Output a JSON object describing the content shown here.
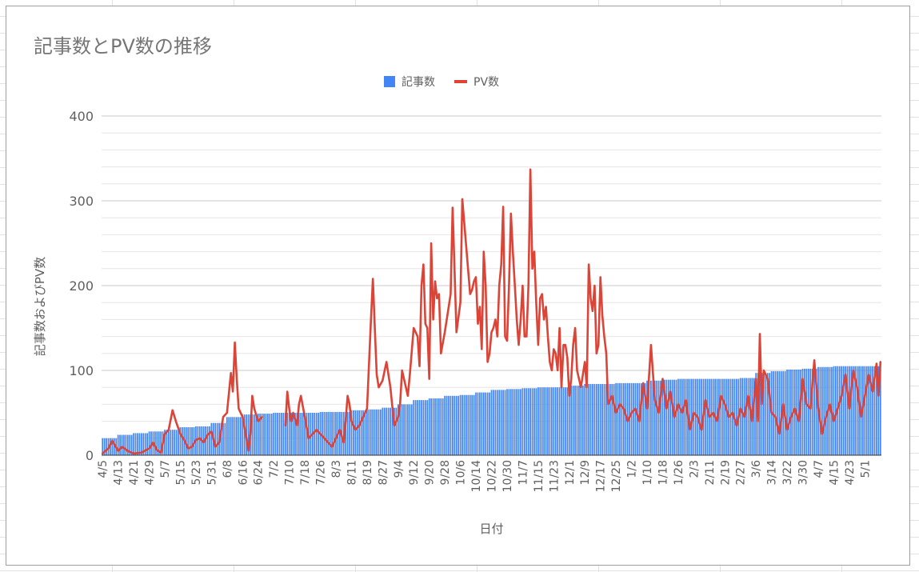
{
  "chart_data": {
    "type": "bar",
    "title": "記事数とPV数の推移",
    "xlabel": "日付",
    "ylabel": "記事数およびPV数",
    "ylim": [
      0,
      400
    ],
    "y_ticks": [
      "0",
      "100",
      "200",
      "300",
      "400"
    ],
    "grid": "on",
    "legend_position": "top",
    "x_tick_labels": [
      "4/5",
      "4/13",
      "4/21",
      "4/29",
      "5/7",
      "5/15",
      "5/23",
      "5/31",
      "6/8",
      "6/16",
      "6/24",
      "7/2",
      "7/10",
      "7/18",
      "7/26",
      "8/3",
      "8/11",
      "8/19",
      "8/27",
      "9/4",
      "9/12",
      "9/20",
      "9/28",
      "10/6",
      "10/14",
      "10/22",
      "10/30",
      "11/7",
      "11/15",
      "11/23",
      "12/1",
      "12/9",
      "12/17",
      "12/25",
      "1/2",
      "1/10",
      "1/18",
      "1/26",
      "2/3",
      "2/11",
      "2/19",
      "2/27",
      "3/6",
      "3/14",
      "3/22",
      "3/30",
      "4/7",
      "4/15",
      "4/23",
      "5/1"
    ],
    "series": [
      {
        "name": "記事数",
        "type": "bar",
        "color": "#4285f4",
        "points": [
          [
            0,
            20
          ],
          [
            8,
            24
          ],
          [
            16,
            26
          ],
          [
            24,
            28
          ],
          [
            32,
            30
          ],
          [
            40,
            33
          ],
          [
            48,
            34
          ],
          [
            56,
            38
          ],
          [
            64,
            45
          ],
          [
            72,
            48
          ],
          [
            80,
            49
          ],
          [
            88,
            50
          ],
          [
            96,
            50
          ],
          [
            104,
            50
          ],
          [
            112,
            51
          ],
          [
            120,
            51
          ],
          [
            128,
            53
          ],
          [
            136,
            54
          ],
          [
            144,
            56
          ],
          [
            152,
            60
          ],
          [
            160,
            65
          ],
          [
            168,
            67
          ],
          [
            176,
            70
          ],
          [
            184,
            71
          ],
          [
            192,
            74
          ],
          [
            200,
            77
          ],
          [
            208,
            78
          ],
          [
            216,
            79
          ],
          [
            224,
            80
          ],
          [
            232,
            80
          ],
          [
            240,
            82
          ],
          [
            248,
            84
          ],
          [
            256,
            84
          ],
          [
            264,
            85
          ],
          [
            272,
            85
          ],
          [
            280,
            88
          ],
          [
            288,
            89
          ],
          [
            296,
            90
          ],
          [
            304,
            90
          ],
          [
            312,
            90
          ],
          [
            320,
            90
          ],
          [
            328,
            91
          ],
          [
            336,
            97
          ],
          [
            344,
            99
          ],
          [
            352,
            101
          ],
          [
            360,
            102
          ],
          [
            368,
            104
          ],
          [
            376,
            105
          ],
          [
            384,
            105
          ],
          [
            392,
            105
          ]
        ]
      },
      {
        "name": "PV数",
        "type": "line",
        "color": "#db4437",
        "points": [
          [
            0,
            2
          ],
          [
            3,
            8
          ],
          [
            5,
            17
          ],
          [
            8,
            5
          ],
          [
            10,
            10
          ],
          [
            13,
            5
          ],
          [
            16,
            2
          ],
          [
            20,
            3
          ],
          [
            24,
            8
          ],
          [
            26,
            15
          ],
          [
            28,
            6
          ],
          [
            30,
            3
          ],
          [
            32,
            25
          ],
          [
            34,
            30
          ],
          [
            36,
            53
          ],
          [
            38,
            38
          ],
          [
            40,
            25
          ],
          [
            42,
            18
          ],
          [
            44,
            8
          ],
          [
            46,
            10
          ],
          [
            48,
            18
          ],
          [
            50,
            20
          ],
          [
            52,
            15
          ],
          [
            54,
            24
          ],
          [
            56,
            28
          ],
          [
            58,
            10
          ],
          [
            60,
            15
          ],
          [
            62,
            45
          ],
          [
            64,
            50
          ],
          [
            66,
            97
          ],
          [
            67,
            75
          ],
          [
            68,
            133
          ],
          [
            69,
            90
          ],
          [
            70,
            55
          ],
          [
            72,
            45
          ],
          [
            74,
            20
          ],
          [
            75,
            5
          ],
          [
            76,
            25
          ],
          [
            77,
            70
          ],
          [
            78,
            55
          ],
          [
            80,
            40
          ],
          [
            82,
            45
          ],
          [
            94,
            35
          ],
          [
            95,
            75
          ],
          [
            96,
            55
          ],
          [
            97,
            40
          ],
          [
            98,
            50
          ],
          [
            100,
            35
          ],
          [
            101,
            60
          ],
          [
            102,
            70
          ],
          [
            104,
            45
          ],
          [
            106,
            20
          ],
          [
            108,
            25
          ],
          [
            110,
            30
          ],
          [
            112,
            25
          ],
          [
            114,
            20
          ],
          [
            116,
            15
          ],
          [
            118,
            10
          ],
          [
            120,
            20
          ],
          [
            122,
            30
          ],
          [
            124,
            15
          ],
          [
            125,
            40
          ],
          [
            126,
            70
          ],
          [
            127,
            60
          ],
          [
            128,
            40
          ],
          [
            130,
            30
          ],
          [
            132,
            35
          ],
          [
            134,
            45
          ],
          [
            136,
            55
          ],
          [
            138,
            160
          ],
          [
            139,
            208
          ],
          [
            140,
            150
          ],
          [
            141,
            95
          ],
          [
            142,
            80
          ],
          [
            144,
            88
          ],
          [
            146,
            110
          ],
          [
            148,
            80
          ],
          [
            150,
            35
          ],
          [
            152,
            45
          ],
          [
            153,
            60
          ],
          [
            154,
            100
          ],
          [
            156,
            80
          ],
          [
            157,
            70
          ],
          [
            158,
            95
          ],
          [
            160,
            150
          ],
          [
            162,
            140
          ],
          [
            163,
            105
          ],
          [
            164,
            200
          ],
          [
            165,
            225
          ],
          [
            166,
            155
          ],
          [
            167,
            150
          ],
          [
            168,
            90
          ],
          [
            169,
            250
          ],
          [
            170,
            160
          ],
          [
            171,
            205
          ],
          [
            172,
            185
          ],
          [
            173,
            190
          ],
          [
            174,
            120
          ],
          [
            176,
            145
          ],
          [
            178,
            175
          ],
          [
            179,
            190
          ],
          [
            180,
            292
          ],
          [
            182,
            145
          ],
          [
            184,
            180
          ],
          [
            185,
            302
          ],
          [
            189,
            190
          ],
          [
            190,
            195
          ],
          [
            191,
            205
          ],
          [
            192,
            210
          ],
          [
            193,
            155
          ],
          [
            194,
            175
          ],
          [
            195,
            125
          ],
          [
            196,
            240
          ],
          [
            197,
            200
          ],
          [
            198,
            110
          ],
          [
            199,
            120
          ],
          [
            200,
            145
          ],
          [
            201,
            150
          ],
          [
            202,
            160
          ],
          [
            203,
            140
          ],
          [
            204,
            200
          ],
          [
            205,
            225
          ],
          [
            206,
            293
          ],
          [
            207,
            140
          ],
          [
            208,
            135
          ],
          [
            209,
            200
          ],
          [
            210,
            285
          ],
          [
            211,
            240
          ],
          [
            212,
            200
          ],
          [
            213,
            160
          ],
          [
            214,
            130
          ],
          [
            215,
            160
          ],
          [
            216,
            200
          ],
          [
            217,
            140
          ],
          [
            218,
            140
          ],
          [
            219,
            200
          ],
          [
            220,
            337
          ],
          [
            221,
            220
          ],
          [
            222,
            240
          ],
          [
            223,
            180
          ],
          [
            224,
            130
          ],
          [
            225,
            185
          ],
          [
            226,
            190
          ],
          [
            227,
            160
          ],
          [
            228,
            175
          ],
          [
            229,
            140
          ],
          [
            230,
            110
          ],
          [
            231,
            100
          ],
          [
            232,
            125
          ],
          [
            233,
            120
          ],
          [
            234,
            100
          ],
          [
            235,
            150
          ],
          [
            236,
            80
          ],
          [
            237,
            130
          ],
          [
            238,
            130
          ],
          [
            239,
            115
          ],
          [
            240,
            70
          ],
          [
            241,
            90
          ],
          [
            242,
            130
          ],
          [
            243,
            150
          ],
          [
            244,
            100
          ],
          [
            245,
            90
          ],
          [
            246,
            80
          ],
          [
            248,
            110
          ],
          [
            249,
            80
          ],
          [
            250,
            225
          ],
          [
            251,
            185
          ],
          [
            252,
            170
          ],
          [
            253,
            200
          ],
          [
            254,
            120
          ],
          [
            255,
            130
          ],
          [
            256,
            210
          ],
          [
            257,
            165
          ],
          [
            258,
            140
          ],
          [
            259,
            120
          ],
          [
            260,
            60
          ],
          [
            262,
            70
          ],
          [
            264,
            50
          ],
          [
            266,
            60
          ],
          [
            268,
            55
          ],
          [
            270,
            40
          ],
          [
            272,
            50
          ],
          [
            274,
            55
          ],
          [
            276,
            40
          ],
          [
            278,
            85
          ],
          [
            280,
            55
          ],
          [
            282,
            130
          ],
          [
            284,
            65
          ],
          [
            286,
            50
          ],
          [
            288,
            90
          ],
          [
            290,
            55
          ],
          [
            292,
            75
          ],
          [
            294,
            45
          ],
          [
            296,
            60
          ],
          [
            298,
            50
          ],
          [
            300,
            65
          ],
          [
            302,
            30
          ],
          [
            304,
            50
          ],
          [
            306,
            45
          ],
          [
            308,
            30
          ],
          [
            310,
            65
          ],
          [
            312,
            45
          ],
          [
            314,
            50
          ],
          [
            316,
            40
          ],
          [
            318,
            70
          ],
          [
            320,
            60
          ],
          [
            322,
            45
          ],
          [
            324,
            50
          ],
          [
            326,
            35
          ],
          [
            328,
            55
          ],
          [
            330,
            45
          ],
          [
            332,
            70
          ],
          [
            334,
            40
          ],
          [
            336,
            90
          ],
          [
            337,
            40
          ],
          [
            338,
            143
          ],
          [
            339,
            60
          ],
          [
            340,
            100
          ],
          [
            342,
            90
          ],
          [
            344,
            50
          ],
          [
            346,
            45
          ],
          [
            348,
            25
          ],
          [
            350,
            60
          ],
          [
            352,
            30
          ],
          [
            354,
            45
          ],
          [
            356,
            55
          ],
          [
            358,
            40
          ],
          [
            360,
            90
          ],
          [
            362,
            60
          ],
          [
            364,
            55
          ],
          [
            366,
            112
          ],
          [
            368,
            55
          ],
          [
            370,
            25
          ],
          [
            372,
            45
          ],
          [
            374,
            60
          ],
          [
            376,
            40
          ],
          [
            378,
            55
          ],
          [
            380,
            70
          ],
          [
            382,
            95
          ],
          [
            384,
            55
          ],
          [
            386,
            100
          ],
          [
            388,
            80
          ],
          [
            390,
            45
          ],
          [
            392,
            70
          ],
          [
            394,
            95
          ],
          [
            396,
            75
          ],
          [
            398,
            108
          ],
          [
            399,
            70
          ],
          [
            400,
            110
          ]
        ]
      }
    ]
  }
}
